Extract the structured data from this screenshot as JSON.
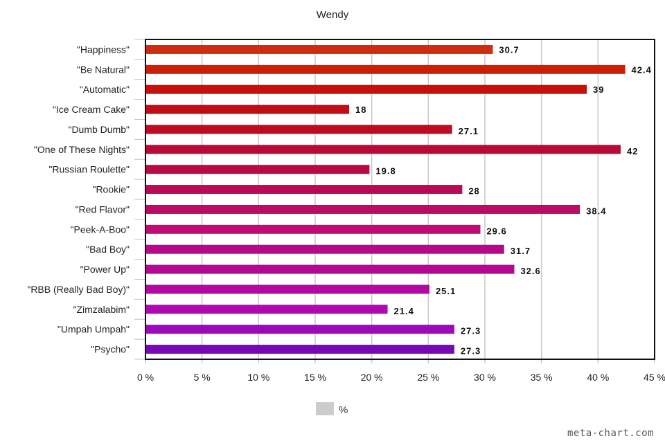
{
  "chart_data": {
    "type": "bar",
    "orientation": "horizontal",
    "title": "Wendy",
    "categories": [
      "\"Happiness\"",
      "\"Be Natural\"",
      "\"Automatic\"",
      "\"Ice Cream Cake\"",
      "\"Dumb Dumb\"",
      "\"One of These Nights\"",
      "\"Russian Roulette\"",
      "\"Rookie\"",
      "\"Red Flavor\"",
      "\"Peek-A-Boo\"",
      "\"Bad Boy\"",
      "\"Power Up\"",
      "\"RBB (Really Bad Boy)\"",
      "\"Zimzalabim\"",
      "\"Umpah Umpah\"",
      "\"Psycho\""
    ],
    "values": [
      30.7,
      42.4,
      39,
      18,
      27.1,
      42,
      19.8,
      28,
      38.4,
      29.6,
      31.7,
      32.6,
      25.1,
      21.4,
      27.3,
      27.3
    ],
    "value_labels": [
      "30.7",
      "42.4",
      "39",
      "18",
      "27.1",
      "42",
      "19.8",
      "28",
      "38.4",
      "29.6",
      "31.7",
      "32.6",
      "25.1",
      "21.4",
      "27.3",
      "27.3"
    ],
    "bar_colors": [
      "#d02c10",
      "#cc1f0a",
      "#c8100a",
      "#c00c14",
      "#be0a22",
      "#b80a36",
      "#b90a44",
      "#ba0a55",
      "#bc0a66",
      "#c00a74",
      "#b8088a",
      "#b40892",
      "#b408a2",
      "#b008b0",
      "#9c08ba",
      "#7808b4"
    ],
    "xlim": [
      0,
      45
    ],
    "xticks": [
      0,
      5,
      10,
      15,
      20,
      25,
      30,
      35,
      40,
      45
    ],
    "xtick_labels": [
      "0 %",
      "5 %",
      "10 %",
      "15 %",
      "20 %",
      "25 %",
      "30 %",
      "35 %",
      "40 %",
      "45 %"
    ],
    "grid": true,
    "legend": {
      "position": "bottom",
      "entries": [
        {
          "label": "%",
          "color": "#cccccc"
        }
      ]
    }
  },
  "watermark": "meta-chart.com"
}
